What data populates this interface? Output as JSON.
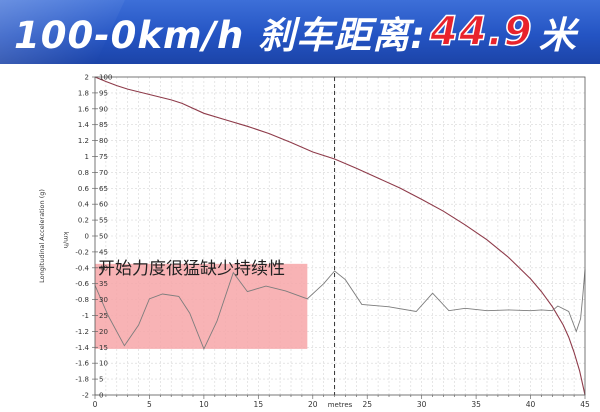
{
  "banner": {
    "main": "100-0km/h 刹车距离:",
    "value": "44.9",
    "unit": "米",
    "colors": {
      "background": "#2454c3",
      "value": "#e8232c",
      "text": "#ffffff"
    }
  },
  "annotation": {
    "text": "开始力度很猛缺少持续性",
    "highlight_color": "#f7a6a8",
    "highlight_x": [
      0,
      19.5
    ],
    "highlight_y_left": [
      -0.35,
      -1.42
    ]
  },
  "chart_data": {
    "type": "line",
    "xlabel": "metres",
    "ylabel_left": "Longitudinal Acceleration (g)",
    "ylabel_right": "km/h",
    "xlim": [
      0,
      45
    ],
    "ylim_left": [
      -2,
      2
    ],
    "ylim_right": [
      0,
      100
    ],
    "x_ticks": [
      0,
      5,
      10,
      15,
      20,
      25,
      30,
      35,
      40,
      45
    ],
    "y_ticks_left": [
      "2",
      "1.8",
      "1.6",
      "1.4",
      "1.2",
      "1",
      "0.8",
      "0.6",
      "0.4",
      "0.2",
      "0",
      "-0.2",
      "-0.4",
      "-0.6",
      "-0.8",
      "-1",
      "-1.2",
      "-1.4",
      "-1.6",
      "-1.8",
      "-2"
    ],
    "y_ticks_right": [
      100,
      95,
      90,
      85,
      80,
      75,
      70,
      65,
      60,
      55,
      50,
      45,
      40,
      35,
      30,
      25,
      20,
      15,
      10,
      5,
      0
    ],
    "grid": true,
    "marker_x": 22,
    "series": [
      {
        "axis": "right",
        "color": "#8e3b4a",
        "points": [
          [
            0,
            100
          ],
          [
            1,
            98.6
          ],
          [
            2,
            97.3
          ],
          [
            3,
            96.2
          ],
          [
            5,
            94.5
          ],
          [
            7,
            92.8
          ],
          [
            8,
            91.7
          ],
          [
            10,
            88.6
          ],
          [
            12,
            86.5
          ],
          [
            14,
            84.5
          ],
          [
            16,
            82.2
          ],
          [
            18,
            79.4
          ],
          [
            20,
            76.4
          ],
          [
            22,
            74.2
          ],
          [
            24,
            71.3
          ],
          [
            26,
            68.2
          ],
          [
            28,
            65.1
          ],
          [
            30,
            61.5
          ],
          [
            32,
            57.8
          ],
          [
            34,
            53.5
          ],
          [
            36,
            48.8
          ],
          [
            38,
            43.2
          ],
          [
            40,
            36.5
          ],
          [
            41,
            32.5
          ],
          [
            42,
            27.8
          ],
          [
            43,
            22
          ],
          [
            43.5,
            18.2
          ],
          [
            44,
            13.4
          ],
          [
            44.5,
            7.6
          ],
          [
            45,
            0
          ]
        ]
      },
      {
        "axis": "left",
        "color": "#7d7d7d",
        "points": [
          [
            0,
            -0.62
          ],
          [
            1.2,
            -1.0
          ],
          [
            2.7,
            -1.38
          ],
          [
            4,
            -1.12
          ],
          [
            5,
            -0.79
          ],
          [
            6.2,
            -0.73
          ],
          [
            7.7,
            -0.76
          ],
          [
            8.7,
            -0.97
          ],
          [
            10,
            -1.42
          ],
          [
            11.2,
            -1.07
          ],
          [
            12.7,
            -0.46
          ],
          [
            14,
            -0.7
          ],
          [
            15.7,
            -0.63
          ],
          [
            17.5,
            -0.69
          ],
          [
            19.5,
            -0.79
          ],
          [
            21,
            -0.6
          ],
          [
            22,
            -0.44
          ],
          [
            23,
            -0.55
          ],
          [
            24.5,
            -0.86
          ],
          [
            27,
            -0.89
          ],
          [
            29.5,
            -0.95
          ],
          [
            31,
            -0.72
          ],
          [
            32.5,
            -0.94
          ],
          [
            34,
            -0.91
          ],
          [
            36,
            -0.94
          ],
          [
            38,
            -0.93
          ],
          [
            40,
            -0.94
          ],
          [
            41,
            -0.93
          ],
          [
            42,
            -0.94
          ],
          [
            42.5,
            -0.88
          ],
          [
            43.5,
            -0.95
          ],
          [
            44.2,
            -1.2
          ],
          [
            44.6,
            -1.04
          ],
          [
            44.8,
            -0.75
          ],
          [
            45,
            -0.42
          ]
        ]
      }
    ]
  }
}
